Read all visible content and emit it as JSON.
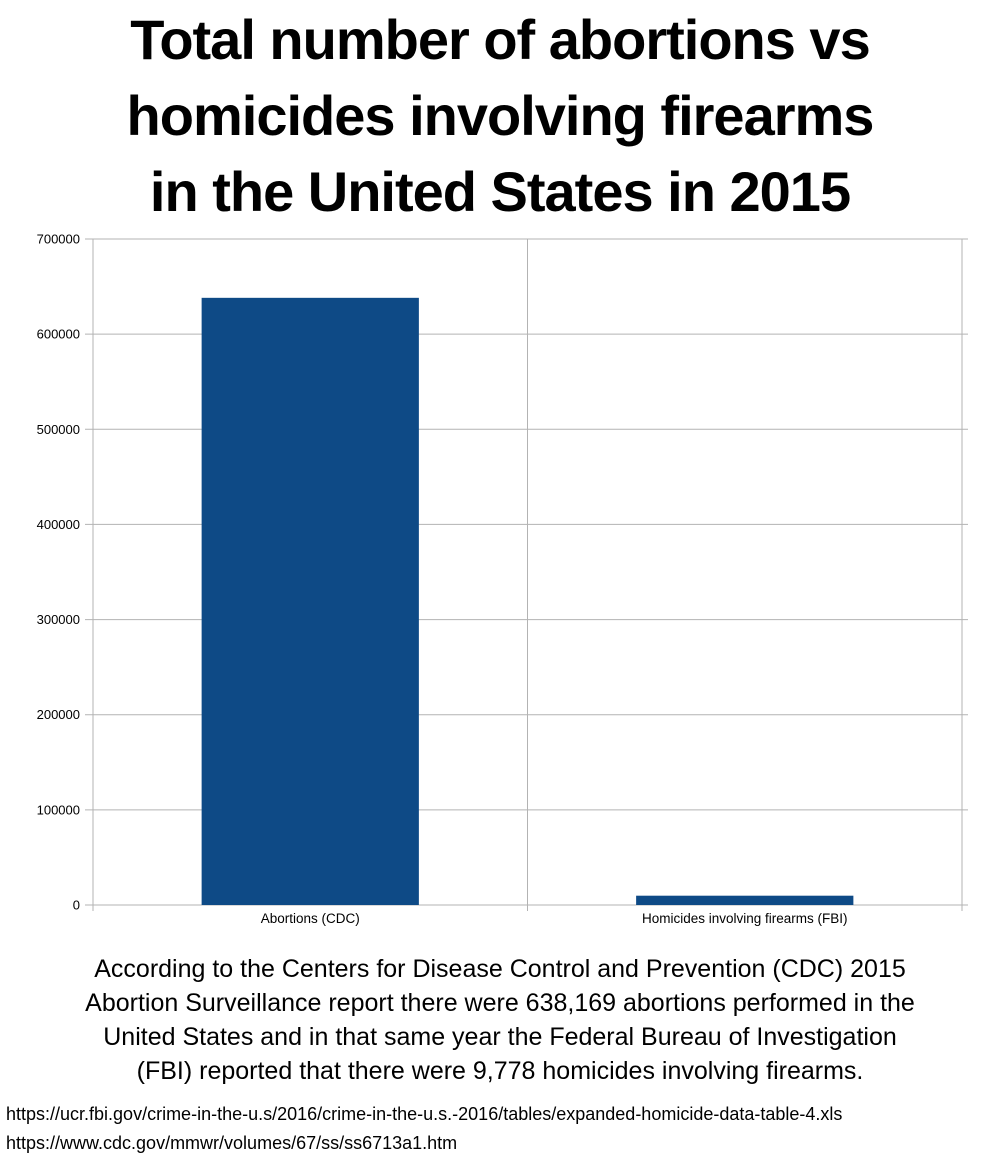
{
  "title": {
    "lines": [
      "Total number of abortions vs",
      "homicides involving firearms",
      "in the United States in 2015"
    ]
  },
  "chart_data": {
    "type": "bar",
    "title": "Total number of abortions vs homicides involving firearms in the United States in 2015",
    "categories": [
      "Abortions (CDC)",
      "Homicides involving firearms (FBI)"
    ],
    "values": [
      638169,
      9778
    ],
    "xlabel": "",
    "ylabel": "",
    "ylim": [
      0,
      700000
    ],
    "yticks": [
      0,
      100000,
      200000,
      300000,
      400000,
      500000,
      600000,
      700000
    ],
    "grid": true,
    "legend": "none",
    "colors": {
      "bar": "#0E4A86",
      "grid": "#b3b3b3",
      "axis": "#b3b3b3",
      "text": "#000000",
      "background": "#ffffff"
    }
  },
  "caption": {
    "lines": [
      "According to the Centers for Disease Control and Prevention (CDC) 2015",
      "Abortion Surveillance report there were 638,169 abortions performed in the",
      "United States and in that same year the Federal Bureau of Investigation",
      "(FBI) reported that there were 9,778 homicides involving firearms."
    ],
    "text": "According to the Centers for Disease Control and Prevention (CDC) 2015 Abortion Surveillance report there were 638,169 abortions performed in the United States and in that same year the Federal Bureau of Investigation (FBI) reported that there were 9,778 homicides involving firearms."
  },
  "sources": {
    "urls": [
      "https://ucr.fbi.gov/crime-in-the-u.s/2016/crime-in-the-u.s.-2016/tables/expanded-homicide-data-table-4.xls",
      "https://www.cdc.gov/mmwr/volumes/67/ss/ss6713a1.htm"
    ]
  }
}
